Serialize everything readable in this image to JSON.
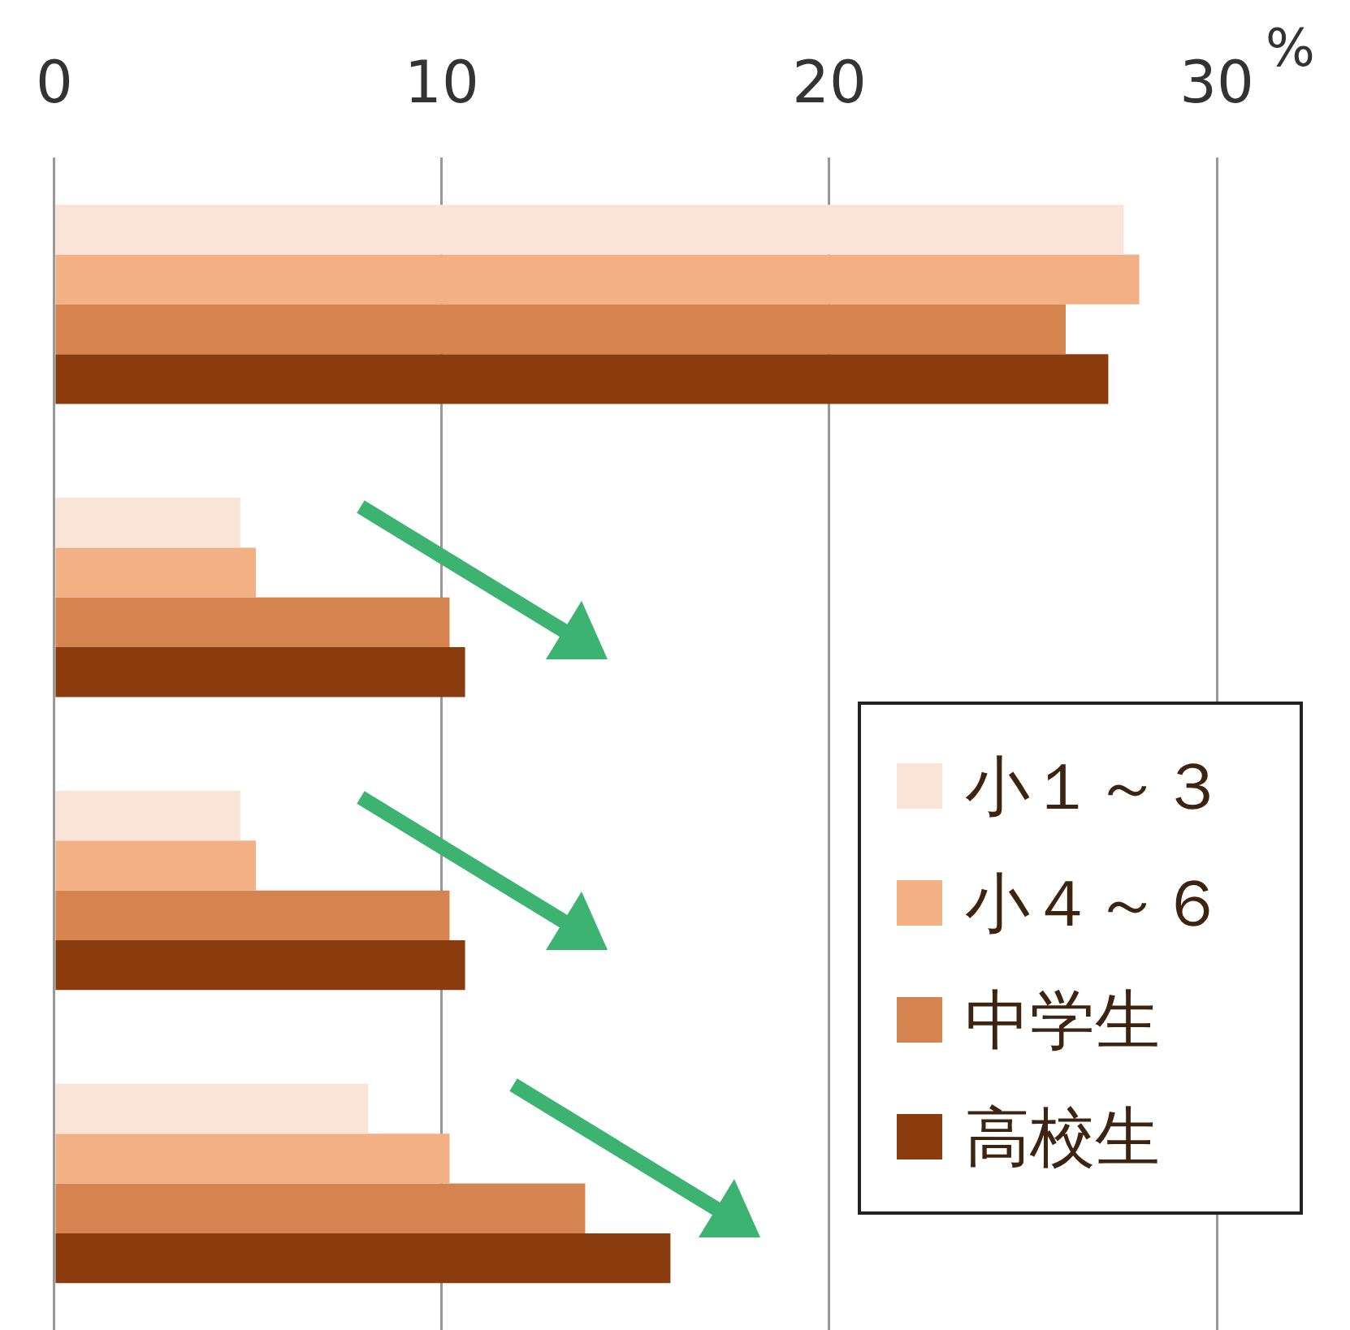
{
  "chart_data": {
    "type": "bar",
    "orientation": "horizontal",
    "categories": [
      null,
      null,
      null,
      null
    ],
    "xlabel": "%",
    "xlim": [
      0,
      30
    ],
    "xticks": [
      0,
      10,
      20,
      30
    ],
    "grid": "x",
    "legend": "bottom right",
    "tick_labels": "x",
    "series": [
      {
        "name": "小１～３",
        "color": "#fae4d7",
        "values": [
          27.6,
          4.8,
          4.8,
          8.1
        ]
      },
      {
        "name": "小４～６",
        "color": "#f3b084",
        "values": [
          28.0,
          5.2,
          5.2,
          10.2
        ]
      },
      {
        "name": "中学生",
        "color": "#d5844f",
        "values": [
          26.1,
          10.2,
          10.2,
          13.7
        ]
      },
      {
        "name": "高校生",
        "color": "#8b3c0e",
        "values": [
          27.2,
          10.6,
          10.6,
          15.9
        ]
      }
    ]
  }
}
